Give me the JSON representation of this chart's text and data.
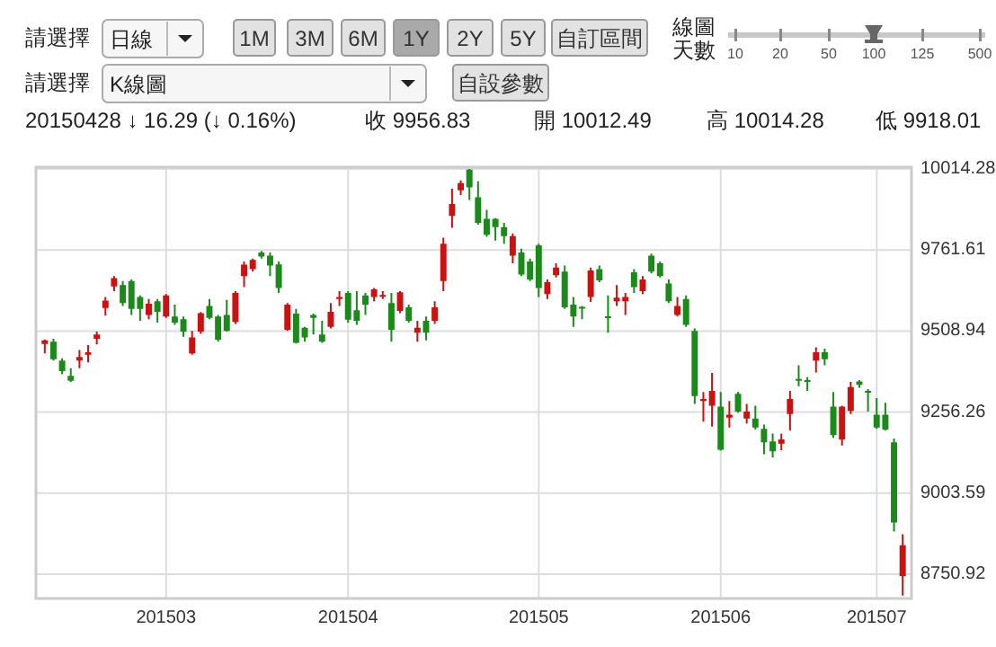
{
  "chart_data": {
    "type": "candlestick",
    "annotations": [
      "請選擇",
      "日線",
      "1M",
      "3M",
      "6M",
      "1Y",
      "2Y",
      "5Y",
      "自訂區間",
      "線圖",
      "天數",
      "10",
      "20",
      "50",
      "100",
      "125",
      "500",
      "請選擇",
      "K線圖",
      "自設參數",
      "20150428 ↓ 16.29 (↓ 0.16%)",
      "收 9956.83",
      "開 10012.49",
      "高 10014.28",
      "低 9918.01"
    ],
    "categories": [
      null,
      null,
      null,
      null,
      null,
      null,
      null,
      null,
      null,
      null,
      null,
      null,
      null,
      null,
      "201503",
      null,
      null,
      null,
      null,
      null,
      null,
      null,
      null,
      null,
      null,
      null,
      null,
      null,
      null,
      null,
      null,
      null,
      null,
      null,
      null,
      "201504",
      null,
      null,
      null,
      null,
      null,
      null,
      null,
      null,
      null,
      null,
      null,
      null,
      null,
      null,
      null,
      null,
      null,
      null,
      null,
      null,
      null,
      "201505",
      null,
      null,
      null,
      null,
      null,
      null,
      null,
      null,
      null,
      null,
      null,
      null,
      null,
      null,
      null,
      null,
      null,
      null,
      null,
      null,
      "201506",
      null,
      null,
      null,
      null,
      null,
      null,
      null,
      null,
      null,
      null,
      null,
      null,
      null,
      null,
      null,
      null,
      null,
      "201507",
      null,
      null,
      null
    ],
    "ohlc": [
      [
        9469,
        9483,
        9439,
        9480
      ],
      [
        9476,
        9485,
        9417,
        9421
      ],
      [
        9417,
        9424,
        9374,
        9384
      ],
      [
        9369,
        9393,
        9350,
        9354
      ],
      [
        9417,
        9450,
        9393,
        9428
      ],
      [
        9435,
        9465,
        9411,
        9443
      ],
      [
        9485,
        9507,
        9467,
        9498
      ],
      [
        9581,
        9615,
        9557,
        9604
      ],
      [
        9648,
        9680,
        9633,
        9674
      ],
      [
        9652,
        9665,
        9587,
        9596
      ],
      [
        9665,
        9670,
        9559,
        9578
      ],
      [
        9615,
        9620,
        9541,
        9578
      ],
      [
        9559,
        9609,
        9546,
        9594
      ],
      [
        9602,
        9609,
        9535,
        9569
      ],
      [
        9554,
        9624,
        9550,
        9620
      ],
      [
        9554,
        9591,
        9528,
        9535
      ],
      [
        9546,
        9554,
        9491,
        9507
      ],
      [
        9439,
        9509,
        9435,
        9489
      ],
      [
        9507,
        9568,
        9500,
        9565
      ],
      [
        9587,
        9609,
        9546,
        9550
      ],
      [
        9554,
        9559,
        9476,
        9482
      ],
      [
        9559,
        9606,
        9507,
        9509
      ],
      [
        9537,
        9633,
        9531,
        9628
      ],
      [
        9680,
        9726,
        9646,
        9716
      ],
      [
        9702,
        9735,
        9694,
        9731
      ],
      [
        9754,
        9759,
        9735,
        9741
      ],
      [
        9744,
        9754,
        9680,
        9713
      ],
      [
        9717,
        9726,
        9628,
        9643
      ],
      [
        9513,
        9596,
        9509,
        9591
      ],
      [
        9563,
        9578,
        9470,
        9472
      ],
      [
        9519,
        9522,
        9476,
        9489
      ],
      [
        9559,
        9563,
        9498,
        9550
      ],
      [
        9498,
        9541,
        9472,
        9476
      ],
      [
        9522,
        9596,
        9517,
        9569
      ],
      [
        9609,
        9633,
        9587,
        9615
      ],
      [
        9628,
        9633,
        9535,
        9544
      ],
      [
        9574,
        9633,
        9528,
        9541
      ],
      [
        9620,
        9628,
        9559,
        9591
      ],
      [
        9615,
        9643,
        9602,
        9639
      ],
      [
        9617,
        9633,
        9609,
        9620
      ],
      [
        9596,
        9628,
        9476,
        9513
      ],
      [
        9572,
        9633,
        9565,
        9630
      ],
      [
        9583,
        9591,
        9535,
        9541
      ],
      [
        9504,
        9541,
        9476,
        9519
      ],
      [
        9541,
        9554,
        9480,
        9504
      ],
      [
        9541,
        9602,
        9531,
        9583
      ],
      [
        9665,
        9800,
        9633,
        9781
      ],
      [
        9868,
        9953,
        9831,
        9905
      ],
      [
        9948,
        9979,
        9933,
        9970
      ],
      [
        10012.49,
        10014.28,
        9918.01,
        9956.83
      ],
      [
        9926,
        9976,
        9841,
        9846
      ],
      [
        9859,
        9887,
        9803,
        9809
      ],
      [
        9859,
        9861,
        9791,
        9833
      ],
      [
        9833,
        9846,
        9781,
        9805
      ],
      [
        9744,
        9813,
        9720,
        9805
      ],
      [
        9754,
        9766,
        9680,
        9685
      ],
      [
        9726,
        9735,
        9665,
        9670
      ],
      [
        9776,
        9781,
        9615,
        9643
      ],
      [
        9624,
        9670,
        9609,
        9661
      ],
      [
        9683,
        9720,
        9676,
        9707
      ],
      [
        9694,
        9713,
        9578,
        9583
      ],
      [
        9591,
        9615,
        9522,
        9554
      ],
      [
        9583,
        9587,
        9546,
        9580
      ],
      [
        9615,
        9707,
        9600,
        9698
      ],
      [
        9702,
        9713,
        9661,
        9667
      ],
      [
        9554,
        9620,
        9504,
        9550
      ],
      [
        9602,
        9652,
        9587,
        9613
      ],
      [
        9602,
        9628,
        9559,
        9615
      ],
      [
        9692,
        9702,
        9628,
        9646
      ],
      [
        9633,
        9680,
        9624,
        9670
      ],
      [
        9744,
        9750,
        9689,
        9694
      ],
      [
        9720,
        9726,
        9676,
        9680
      ],
      [
        9657,
        9670,
        9596,
        9602
      ],
      [
        9559,
        9615,
        9554,
        9587
      ],
      [
        9609,
        9620,
        9522,
        9528
      ],
      [
        9509,
        9517,
        9282,
        9306
      ],
      [
        9291,
        9319,
        9226,
        9297
      ],
      [
        9276,
        9378,
        9211,
        9322
      ],
      [
        9273,
        9319,
        9136,
        9139
      ],
      [
        9239,
        9291,
        9208,
        9248
      ],
      [
        9313,
        9319,
        9254,
        9258
      ],
      [
        9236,
        9282,
        9221,
        9258
      ],
      [
        9236,
        9276,
        9202,
        9208
      ],
      [
        9204,
        9217,
        9125,
        9162
      ],
      [
        9165,
        9189,
        9115,
        9134
      ],
      [
        9158,
        9189,
        9137,
        9171
      ],
      [
        9250,
        9322,
        9199,
        9297
      ],
      [
        9359,
        9402,
        9337,
        9354
      ],
      [
        9356,
        9365,
        9322,
        9350
      ],
      [
        9417,
        9458,
        9380,
        9443
      ],
      [
        9443,
        9454,
        9402,
        9421
      ],
      [
        9273,
        9319,
        9176,
        9184
      ],
      [
        9171,
        9276,
        9152,
        9273
      ],
      [
        9260,
        9350,
        9250,
        9334
      ],
      [
        9352,
        9356,
        9332,
        9341
      ],
      [
        9322,
        9328,
        9258,
        9317
      ],
      [
        9248,
        9300,
        9204,
        9208
      ],
      [
        9248,
        9285,
        9199,
        9202
      ],
      [
        9162,
        9174,
        8884,
        8912
      ],
      [
        8745,
        8875,
        8684,
        8841
      ]
    ],
    "colors": [
      "#cc1111",
      "#1a8a1a",
      "#1a8a1a",
      "#1a8a1a",
      "#cc1111",
      "#cc1111",
      "#cc1111",
      "#cc1111",
      "#cc1111",
      "#1a8a1a",
      "#1a8a1a",
      "#1a8a1a",
      "#cc1111",
      "#1a8a1a",
      "#cc1111",
      "#1a8a1a",
      "#1a8a1a",
      "#cc1111",
      "#cc1111",
      "#1a8a1a",
      "#1a8a1a",
      "#1a8a1a",
      "#cc1111",
      "#cc1111",
      "#cc1111",
      "#1a8a1a",
      "#1a8a1a",
      "#1a8a1a",
      "#cc1111",
      "#1a8a1a",
      "#1a8a1a",
      "#1a8a1a",
      "#1a8a1a",
      "#cc1111",
      "#cc1111",
      "#1a8a1a",
      "#1a8a1a",
      "#1a8a1a",
      "#cc1111",
      "#cc1111",
      "#1a8a1a",
      "#cc1111",
      "#1a8a1a",
      "#cc1111",
      "#1a8a1a",
      "#cc1111",
      "#cc1111",
      "#cc1111",
      "#cc1111",
      "#1a8a1a",
      "#1a8a1a",
      "#1a8a1a",
      "#1a8a1a",
      "#1a8a1a",
      "#cc1111",
      "#1a8a1a",
      "#1a8a1a",
      "#1a8a1a",
      "#cc1111",
      "#cc1111",
      "#1a8a1a",
      "#1a8a1a",
      "#1a8a1a",
      "#cc1111",
      "#1a8a1a",
      "#1a8a1a",
      "#cc1111",
      "#cc1111",
      "#1a8a1a",
      "#cc1111",
      "#1a8a1a",
      "#1a8a1a",
      "#1a8a1a",
      "#cc1111",
      "#1a8a1a",
      "#1a8a1a",
      "#cc1111",
      "#cc1111",
      "#1a8a1a",
      "#cc1111",
      "#1a8a1a",
      "#cc1111",
      "#1a8a1a",
      "#1a8a1a",
      "#1a8a1a",
      "#cc1111",
      "#cc1111",
      "#1a8a1a",
      "#1a8a1a",
      "#cc1111",
      "#1a8a1a",
      "#1a8a1a",
      "#cc1111",
      "#cc1111",
      "#1a8a1a",
      "#1a8a1a",
      "#1a8a1a",
      "#1a8a1a",
      "#1a8a1a",
      "#cc1111"
    ],
    "ylim": [
      8675,
      10020
    ],
    "yticks": [
      10014.28,
      9761.61,
      9508.94,
      9256.26,
      9003.59,
      8750.92
    ],
    "grid": true
  }
}
